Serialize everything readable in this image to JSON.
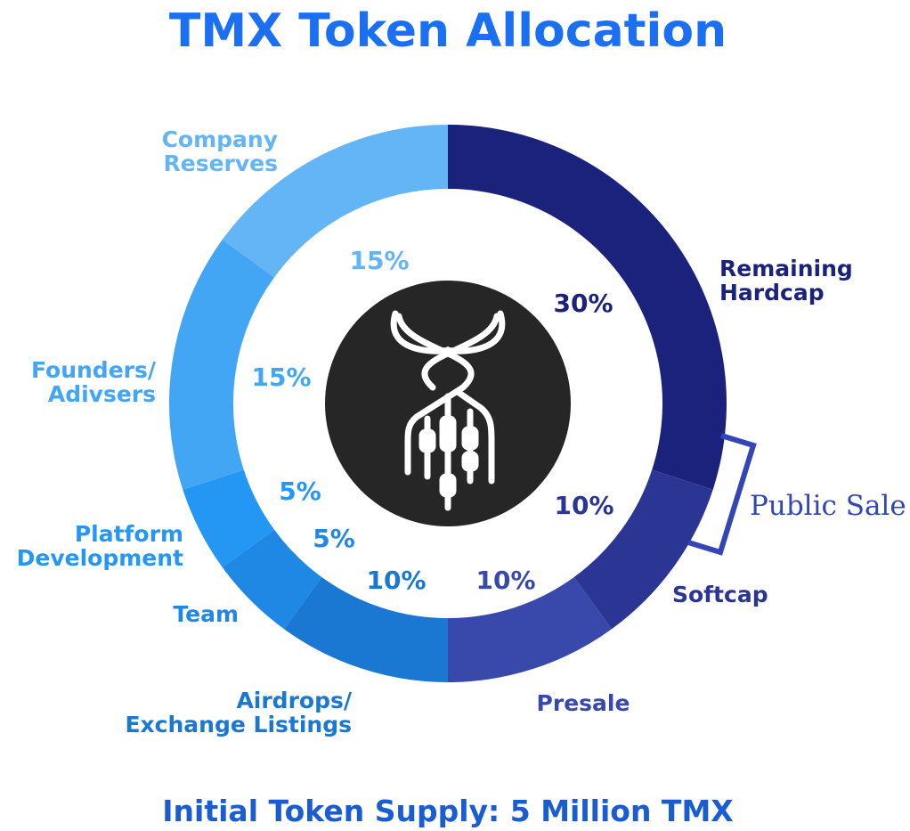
{
  "chart_data": {
    "type": "pie",
    "title": "TMX Token Allocation",
    "subtitle": "Initial Token Supply: 5 Million TMX",
    "group_label": "Public Sale",
    "slices": [
      {
        "label": "Remaining Hardcap",
        "label_lines": [
          "Remaining",
          "Hardcap"
        ],
        "value": 30,
        "display": "30%",
        "color": "#1b227b",
        "text_color": "#1b227b",
        "group": "public-sale"
      },
      {
        "label": "Softcap",
        "label_lines": [
          "Softcap"
        ],
        "value": 10,
        "display": "10%",
        "color": "#2b3594",
        "text_color": "#2b3594",
        "group": "public-sale"
      },
      {
        "label": "Presale",
        "label_lines": [
          "Presale"
        ],
        "value": 10,
        "display": "10%",
        "color": "#3948ab",
        "text_color": "#3948ab",
        "group": ""
      },
      {
        "label": "Airdrops/ Exchange Listings",
        "label_lines": [
          "Airdrops/",
          "Exchange Listings"
        ],
        "value": 10,
        "display": "10%",
        "color": "#1a77d2",
        "text_color": "#1a77d2",
        "group": ""
      },
      {
        "label": "Team",
        "label_lines": [
          "Team"
        ],
        "value": 5,
        "display": "5%",
        "color": "#1f88e5",
        "text_color": "#1f88e5",
        "group": ""
      },
      {
        "label": "Platform Development",
        "label_lines": [
          "Platform",
          "Development"
        ],
        "value": 5,
        "display": "5%",
        "color": "#2397f3",
        "text_color": "#2397f3",
        "group": ""
      },
      {
        "label": "Founders/ Adivsers",
        "label_lines": [
          "Founders/",
          "Adivsers"
        ],
        "value": 15,
        "display": "15%",
        "color": "#42a6f5",
        "text_color": "#42a6f5",
        "group": ""
      },
      {
        "label": "Company Reserves",
        "label_lines": [
          "Company",
          "Reserves"
        ],
        "value": 15,
        "display": "15%",
        "color": "#64b5f6",
        "text_color": "#64b5f6",
        "group": ""
      }
    ],
    "center_logo": "tmx-logo-icon"
  },
  "colors": {
    "title": "#1a6ff2",
    "subtitle": "#1a5cd1",
    "bracket": "#3346b5",
    "logo_bg": "#262626",
    "logo_fg": "#ffffff"
  }
}
